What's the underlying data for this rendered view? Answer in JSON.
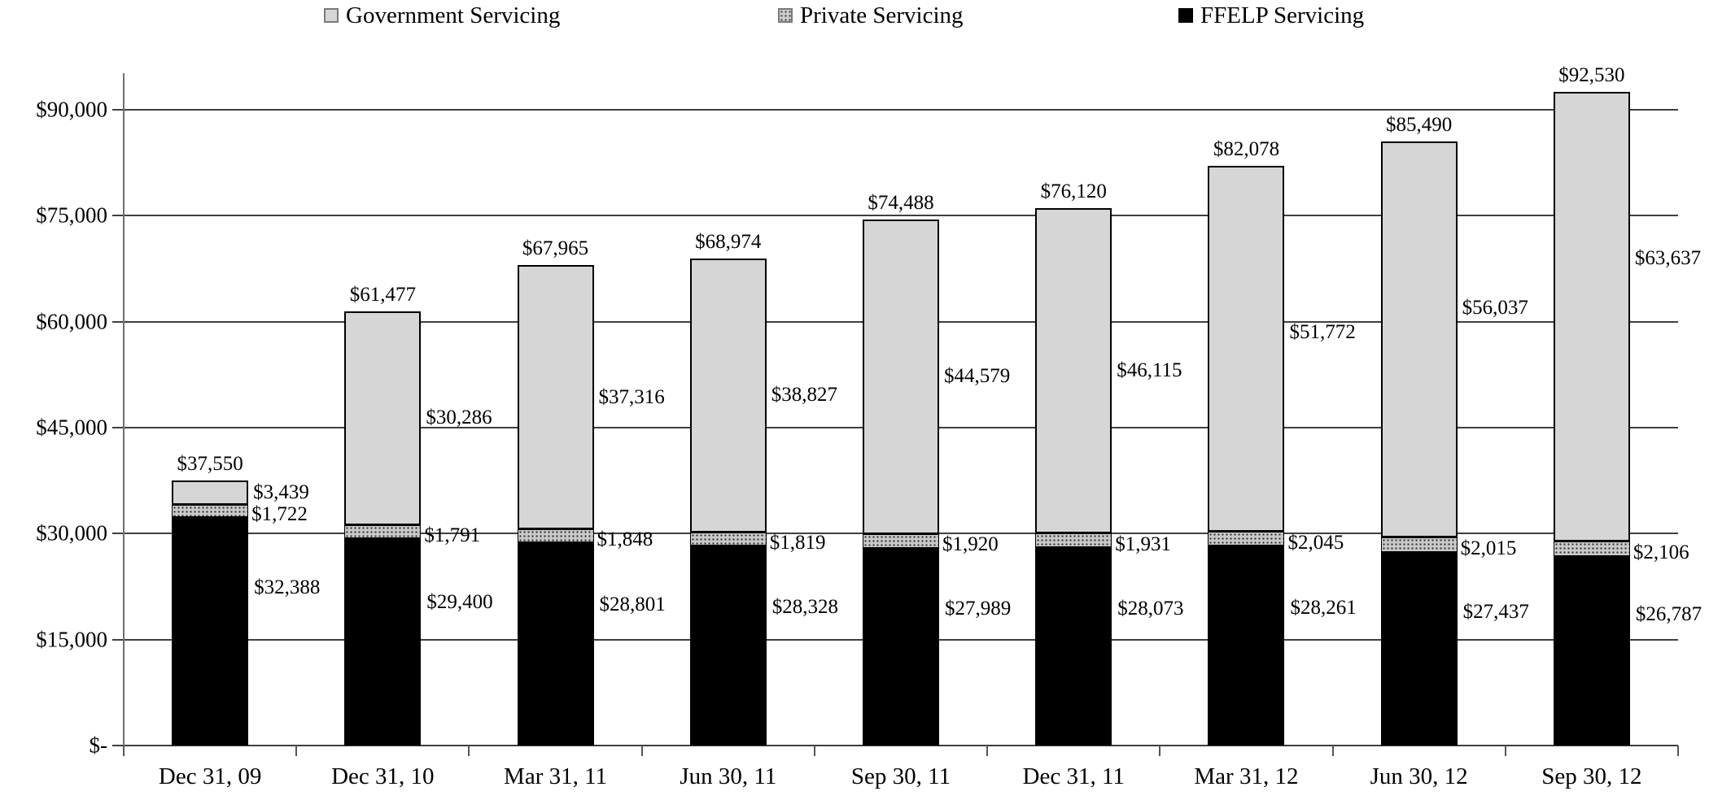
{
  "chart_data": {
    "type": "bar",
    "stacked": true,
    "title": "",
    "xlabel": "",
    "ylabel": "",
    "grid": true,
    "legend_position": "top",
    "categories": [
      "Dec 31, 09",
      "Dec 31, 10",
      "Mar 31, 11",
      "Jun 30, 11",
      "Sep 30, 11",
      "Dec 31, 11",
      "Mar 31, 12",
      "Jun 30, 12",
      "Sep 30, 12"
    ],
    "series": [
      {
        "name": "FFELP Servicing",
        "color": "#000000",
        "pattern": "solid-black",
        "values": [
          32388,
          29400,
          28801,
          28328,
          27989,
          28073,
          28261,
          27437,
          26787
        ],
        "labels": [
          "$32,388",
          "$29,400",
          "$28,801",
          "$28,328",
          "$27,989",
          "$28,073",
          "$28,261",
          "$27,437",
          "$26,787"
        ]
      },
      {
        "name": "Private Servicing",
        "color": "#c9c9c9",
        "pattern": "dotted-gray",
        "values": [
          1722,
          1791,
          1848,
          1819,
          1920,
          1931,
          2045,
          2015,
          2106
        ],
        "labels": [
          "$1,722",
          "$1,791",
          "$1,848",
          "$1,819",
          "$1,920",
          "$1,931",
          "$2,045",
          "$2,015",
          "$2,106"
        ]
      },
      {
        "name": "Government Servicing",
        "color": "#d6d6d6",
        "pattern": "solid-light-gray",
        "values": [
          3439,
          30286,
          37316,
          38827,
          44579,
          46115,
          51772,
          56037,
          63637
        ],
        "labels": [
          "$3,439",
          "$30,286",
          "$37,316",
          "$38,827",
          "$44,579",
          "$46,115",
          "$51,772",
          "$56,037",
          "$63,637"
        ]
      }
    ],
    "totals": {
      "values": [
        37550,
        61477,
        67965,
        68974,
        74488,
        76120,
        82078,
        85490,
        92530
      ],
      "labels": [
        "$37,550",
        "$61,477",
        "$67,965",
        "$68,974",
        "$74,488",
        "$76,120",
        "$82,078",
        "$85,490",
        "$92,530"
      ]
    },
    "y_axis": {
      "min": 0,
      "max": 90000,
      "tick_step": 15000,
      "ticks": [
        {
          "value": 0,
          "label": "$-"
        },
        {
          "value": 15000,
          "label": "$15,000"
        },
        {
          "value": 30000,
          "label": "$30,000"
        },
        {
          "value": 45000,
          "label": "$45,000"
        },
        {
          "value": 60000,
          "label": "$60,000"
        },
        {
          "value": 75000,
          "label": "$75,000"
        },
        {
          "value": 90000,
          "label": "$90,000"
        }
      ]
    },
    "legend": {
      "items": [
        {
          "label": "Government Servicing",
          "swatch": "light-gray-square"
        },
        {
          "label": "Private Servicing",
          "swatch": "dotted-gray-square"
        },
        {
          "label": "FFELP Servicing",
          "swatch": "black-square"
        }
      ]
    }
  }
}
